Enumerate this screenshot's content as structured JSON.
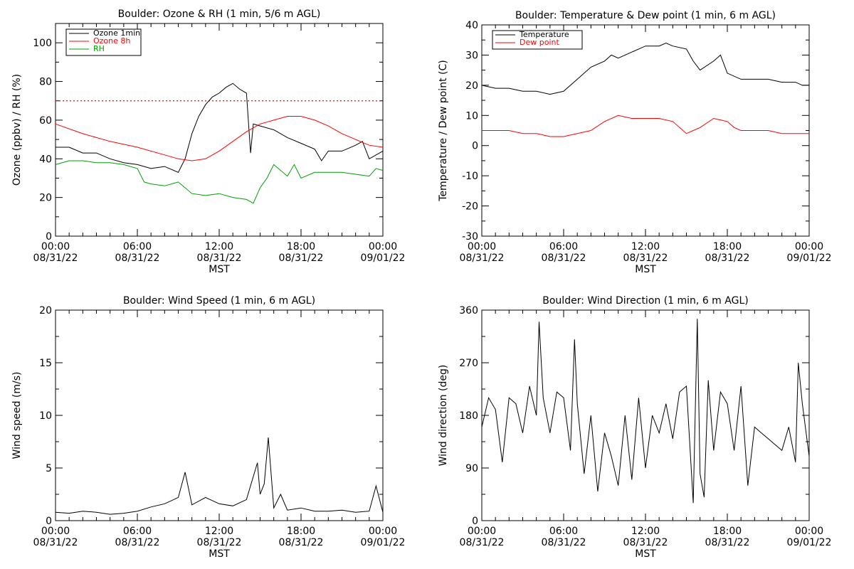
{
  "x_ticks": [
    {
      "h": 0,
      "time": "00:00",
      "date": "08/31/22"
    },
    {
      "h": 6,
      "time": "06:00",
      "date": "08/31/22"
    },
    {
      "h": 12,
      "time": "12:00",
      "date": "08/31/22"
    },
    {
      "h": 18,
      "time": "18:00",
      "date": "08/31/22"
    },
    {
      "h": 24,
      "time": "00:00",
      "date": "09/01/22"
    }
  ],
  "x_label": "MST",
  "colors": {
    "black": "#000000",
    "red": "#ff0000",
    "green": "#00a000"
  },
  "chart_data": [
    {
      "id": "ozone-rh",
      "type": "line",
      "title": "Boulder: Ozone & RH (1 min, 5/6 m AGL)",
      "xlabel": "MST",
      "ylabel": "Ozone (ppbv) / RH (%)",
      "xlim": [
        0,
        24
      ],
      "ylim": [
        0,
        110
      ],
      "yticks": [
        0,
        20,
        40,
        60,
        80,
        100
      ],
      "grid": false,
      "legend_position": "top-left",
      "reference_line": {
        "y": 70,
        "style": "dotted",
        "color": "#ff0000"
      },
      "series": [
        {
          "name": "Ozone 1min",
          "color": "#000000",
          "x": [
            0,
            1,
            2,
            3,
            4,
            5,
            6,
            7,
            8,
            9,
            9.5,
            10,
            10.5,
            11,
            11.5,
            12,
            12.5,
            13,
            13.5,
            14,
            14.3,
            14.5,
            15,
            16,
            17,
            18,
            19,
            19.5,
            20,
            21,
            22,
            22.5,
            23,
            24
          ],
          "y": [
            46,
            46,
            43,
            43,
            40,
            38,
            37,
            35,
            36,
            33,
            40,
            53,
            62,
            68,
            72,
            74,
            77,
            79,
            76,
            74,
            43,
            58,
            57,
            55,
            51,
            48,
            45,
            39,
            44,
            44,
            47,
            49,
            40,
            44
          ]
        },
        {
          "name": "Ozone 8h",
          "color": "#ff0000",
          "x": [
            0,
            2,
            4,
            6,
            8,
            9,
            10,
            11,
            12,
            13,
            14,
            15,
            16,
            17,
            18,
            19,
            20,
            21,
            22,
            23,
            24
          ],
          "y": [
            58,
            53,
            49,
            46,
            42,
            40,
            39,
            40,
            44,
            49,
            54,
            58,
            60,
            62,
            62,
            60,
            57,
            53,
            50,
            47,
            46
          ]
        },
        {
          "name": "RH",
          "color": "#00a000",
          "x": [
            0,
            1,
            2,
            3,
            4,
            5,
            6,
            6.5,
            7,
            8,
            8.5,
            9,
            10,
            11,
            12,
            13,
            14,
            14.5,
            15,
            15.5,
            16,
            17,
            17.5,
            18,
            19,
            20,
            21,
            22,
            23,
            23.5,
            24
          ],
          "y": [
            37,
            39,
            39,
            38,
            38,
            37,
            35,
            28,
            27,
            26,
            27,
            28,
            22,
            21,
            22,
            20,
            19,
            17,
            25,
            30,
            37,
            31,
            37,
            30,
            33,
            33,
            33,
            32,
            31,
            35,
            34
          ]
        }
      ]
    },
    {
      "id": "temp-dew",
      "type": "line",
      "title": "Boulder: Temperature & Dew point (1 min, 6 m AGL)",
      "xlabel": "MST",
      "ylabel": "Temperature / Dew point (C)",
      "xlim": [
        0,
        24
      ],
      "ylim": [
        -30,
        40
      ],
      "yticks": [
        -30,
        -20,
        -10,
        0,
        10,
        20,
        30,
        40
      ],
      "grid": false,
      "legend_position": "top-left",
      "series": [
        {
          "name": "Temperature",
          "color": "#000000",
          "x": [
            0,
            1,
            2,
            3,
            4,
            5,
            6,
            7,
            8,
            9,
            9.5,
            10,
            11,
            12,
            13,
            13.5,
            14,
            15,
            15.5,
            16,
            17,
            17.5,
            18,
            19,
            20,
            21,
            22,
            23,
            23.5,
            24
          ],
          "y": [
            20,
            19,
            19,
            18,
            18,
            17,
            18,
            22,
            26,
            28,
            30,
            29,
            31,
            33,
            33,
            34,
            33,
            32,
            28,
            25,
            28,
            30,
            24,
            22,
            22,
            22,
            21,
            21,
            20,
            20
          ]
        },
        {
          "name": "Dew point",
          "color": "#ff0000",
          "x": [
            0,
            1,
            2,
            3,
            4,
            5,
            6,
            7,
            8,
            9,
            10,
            11,
            12,
            13,
            14,
            15,
            15.5,
            16,
            17,
            18,
            18.5,
            19,
            20,
            21,
            22,
            23,
            24
          ],
          "y": [
            5,
            5,
            5,
            4,
            4,
            3,
            3,
            4,
            5,
            8,
            10,
            9,
            9,
            9,
            8,
            4,
            5,
            6,
            9,
            8,
            6,
            5,
            5,
            5,
            4,
            4,
            4
          ]
        }
      ]
    },
    {
      "id": "wind-speed",
      "type": "line",
      "title": "Boulder: Wind Speed (1 min, 6 m AGL)",
      "xlabel": "MST",
      "ylabel": "Wind speed (m/s)",
      "xlim": [
        0,
        24
      ],
      "ylim": [
        0,
        20
      ],
      "yticks": [
        0,
        5,
        10,
        15,
        20
      ],
      "grid": false,
      "series": [
        {
          "name": "",
          "color": "#000000",
          "x": [
            0,
            1,
            2,
            3,
            4,
            5,
            6,
            7,
            8,
            9,
            9.5,
            10,
            11,
            12,
            13,
            14,
            14.8,
            15,
            15.3,
            15.6,
            16,
            16.5,
            17,
            18,
            19,
            20,
            21,
            22,
            23,
            23.5,
            24
          ],
          "y": [
            0.8,
            0.7,
            0.9,
            0.8,
            0.6,
            0.7,
            0.9,
            1.3,
            1.6,
            2.2,
            4.6,
            1.5,
            2.2,
            1.6,
            1.4,
            2.0,
            5.5,
            2.5,
            3.5,
            7.9,
            1.2,
            2.5,
            1.0,
            1.2,
            0.9,
            0.9,
            1.0,
            0.8,
            0.9,
            3.3,
            0.8
          ]
        }
      ]
    },
    {
      "id": "wind-dir",
      "type": "line",
      "title": "Boulder: Wind Direction (1 min, 6 m AGL)",
      "xlabel": "MST",
      "ylabel": "Wind direction (deg)",
      "xlim": [
        0,
        24
      ],
      "ylim": [
        0,
        360
      ],
      "yticks": [
        0,
        90,
        180,
        270,
        360
      ],
      "grid": false,
      "series": [
        {
          "name": "",
          "color": "#000000",
          "x": [
            0,
            0.5,
            1,
            1.5,
            2,
            2.5,
            3,
            3.5,
            4,
            4.2,
            4.5,
            5,
            5.5,
            6,
            6.5,
            6.8,
            7,
            7.5,
            8,
            8.5,
            9,
            9.5,
            10,
            10.5,
            11,
            11.5,
            12,
            12.5,
            13,
            13.5,
            14,
            14.5,
            15,
            15.5,
            15.8,
            16,
            16.3,
            16.6,
            17,
            17.5,
            18,
            18.5,
            19,
            19.5,
            20,
            20.5,
            21,
            21.5,
            22,
            22.5,
            23,
            23.2,
            23.5,
            24
          ],
          "y": [
            160,
            210,
            190,
            100,
            210,
            200,
            150,
            230,
            180,
            340,
            210,
            150,
            220,
            210,
            120,
            310,
            200,
            80,
            180,
            50,
            150,
            110,
            60,
            180,
            70,
            210,
            90,
            180,
            150,
            200,
            140,
            220,
            230,
            30,
            345,
            80,
            40,
            240,
            120,
            220,
            200,
            120,
            230,
            60,
            160,
            150,
            140,
            130,
            120,
            160,
            100,
            270,
            200,
            110
          ]
        }
      ]
    }
  ]
}
